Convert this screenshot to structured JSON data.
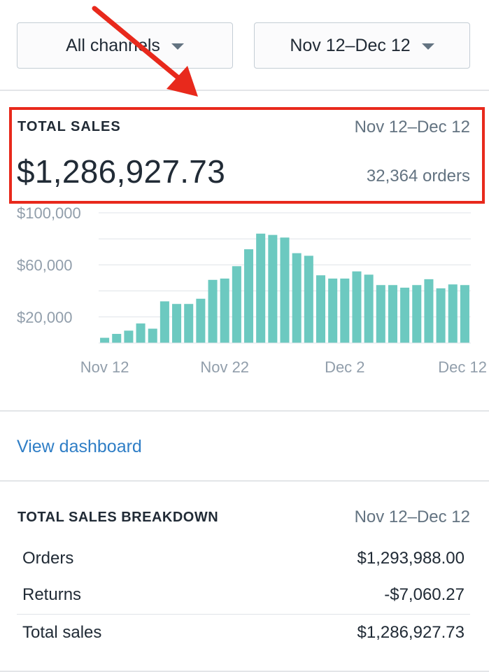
{
  "filters": {
    "channel_label": "All channels",
    "date_label": "Nov 12–Dec 12"
  },
  "total_sales": {
    "title": "TOTAL SALES",
    "date_range": "Nov 12–Dec 12",
    "amount": "$1,286,927.73",
    "orders": "32,364 orders"
  },
  "chart_data": {
    "type": "bar",
    "title": "",
    "xlabel": "",
    "ylabel": "",
    "ylim": [
      0,
      100000
    ],
    "y_ticks": [
      "$100,000",
      "$60,000",
      "$20,000"
    ],
    "y_tick_values": [
      100000,
      60000,
      20000
    ],
    "x_tick_labels": [
      "Nov 12",
      "Nov 22",
      "Dec 2",
      "Dec 12"
    ],
    "categories": [
      "Nov 12",
      "Nov 13",
      "Nov 14",
      "Nov 15",
      "Nov 16",
      "Nov 17",
      "Nov 18",
      "Nov 19",
      "Nov 20",
      "Nov 21",
      "Nov 22",
      "Nov 23",
      "Nov 24",
      "Nov 25",
      "Nov 26",
      "Nov 27",
      "Nov 28",
      "Nov 29",
      "Nov 30",
      "Dec 1",
      "Dec 2",
      "Dec 3",
      "Dec 4",
      "Dec 5",
      "Dec 6",
      "Dec 7",
      "Dec 8",
      "Dec 9",
      "Dec 10",
      "Dec 11",
      "Dec 12"
    ],
    "values": [
      4000,
      7000,
      9500,
      15000,
      11000,
      32000,
      30000,
      30000,
      34000,
      48500,
      49500,
      59000,
      72000,
      84000,
      83000,
      81000,
      69000,
      67000,
      52000,
      49500,
      49500,
      55000,
      52500,
      44500,
      44500,
      42500,
      44500,
      49000,
      42000,
      45000,
      44500
    ],
    "bar_color": "#6cc9c0"
  },
  "view_dashboard": {
    "label": "View dashboard"
  },
  "breakdown": {
    "title": "TOTAL SALES BREAKDOWN",
    "date_range": "Nov 12–Dec 12",
    "rows": [
      {
        "label": "Orders",
        "value": "$1,293,988.00"
      },
      {
        "label": "Returns",
        "value": "-$7,060.27"
      },
      {
        "label": "Total sales",
        "value": "$1,286,927.73"
      }
    ]
  },
  "colors": {
    "highlight": "#e8291c",
    "link": "#2f7ec6",
    "muted_text": "#637381"
  }
}
